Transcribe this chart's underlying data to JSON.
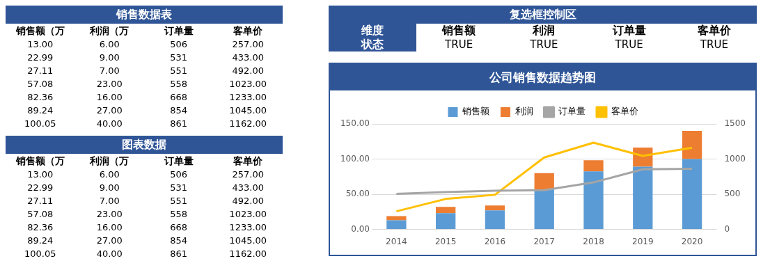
{
  "chart_data": [
    {
      "type": "other",
      "title": "销售数据表",
      "categories": [
        "销售额（万",
        "利润（万",
        "订单量",
        "客单价"
      ],
      "annotations": [
        "13.00",
        "6.00",
        "506",
        "257.00",
        "22.99",
        "9.00",
        "531",
        "433.00",
        "27.11",
        "7.00",
        "551",
        "492.00",
        "57.08",
        "23.00",
        "558",
        "1023.00",
        "82.36",
        "16.00",
        "668",
        "1233.00",
        "89.24",
        "27.00",
        "854",
        "1045.00",
        "100.05",
        "40.00",
        "861",
        "1162.00"
      ]
    },
    {
      "type": "other",
      "title": "图表数据",
      "categories": [
        "销售额（万",
        "利润（万",
        "订单量",
        "客单价"
      ],
      "annotations": [
        "13.00",
        "6.00",
        "506",
        "257.00",
        "22.99",
        "9.00",
        "531",
        "433.00",
        "27.11",
        "7.00",
        "551",
        "492.00",
        "57.08",
        "23.00",
        "558",
        "1023.00",
        "82.36",
        "16.00",
        "668",
        "1233.00",
        "89.24",
        "27.00",
        "854",
        "1045.00",
        "100.05",
        "40.00",
        "861",
        "1162.00"
      ]
    },
    {
      "type": "other",
      "title": "复选框控制区",
      "y_categories": [
        "维度",
        "状态"
      ],
      "categories": [
        "销售额",
        "利润",
        "订单量",
        "客单价"
      ],
      "annotations": [
        "TRUE",
        "TRUE",
        "TRUE",
        "TRUE"
      ]
    },
    {
      "type": "bar",
      "title": "公司销售数据趋势图",
      "categories": [
        "2014",
        "2015",
        "2016",
        "2017",
        "2018",
        "2019",
        "2020"
      ],
      "stacked": true,
      "legend": "top",
      "grid": "y",
      "ylim": [
        0,
        150
      ],
      "yticks": [
        {
          "value": 0,
          "label": "0.00"
        },
        {
          "value": 50,
          "label": "50.00"
        },
        {
          "value": 100,
          "label": "100.00"
        },
        {
          "value": 150,
          "label": "150.00"
        }
      ],
      "y2lim": [
        0,
        1500
      ],
      "y2ticks": [
        0,
        500,
        1000,
        1500
      ],
      "series": [
        {
          "name": "销售额",
          "color": "#5b9bd5",
          "values": [
            13,
            22.99,
            27.11,
            57.08,
            82.36,
            89.24,
            100.05
          ]
        },
        {
          "name": "利润",
          "color": "#ed7d31",
          "values": [
            6,
            9,
            7,
            23,
            16,
            27,
            40
          ]
        },
        {
          "name": "订单量",
          "type": "line",
          "axis": "y2",
          "color": "#a5a5a5",
          "values": [
            506,
            531,
            551,
            558,
            668,
            854,
            861
          ]
        },
        {
          "name": "客单价",
          "type": "line",
          "axis": "y2",
          "color": "#ffc000",
          "values": [
            257,
            433,
            492,
            1023,
            1233,
            1045,
            1162
          ]
        }
      ]
    }
  ]
}
